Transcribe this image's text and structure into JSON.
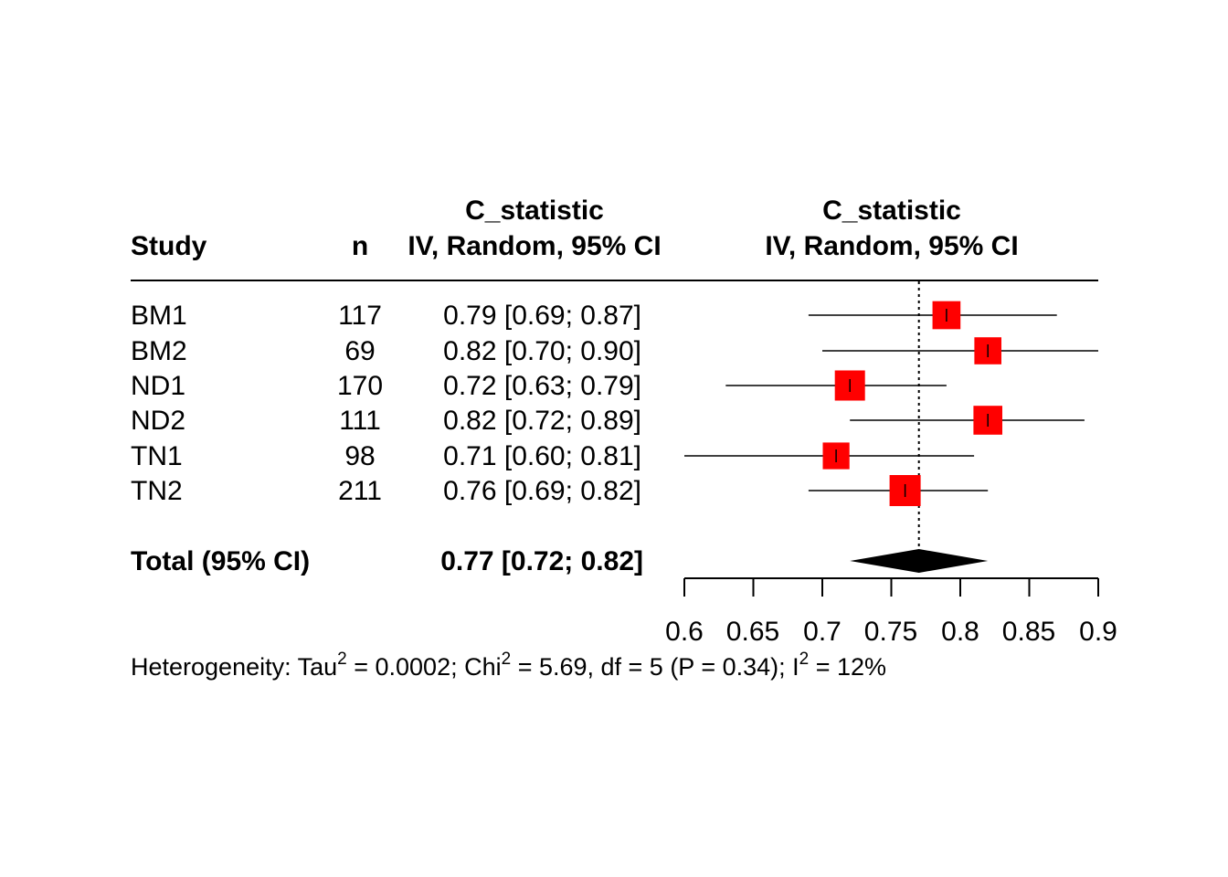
{
  "chart_data": {
    "type": "forest",
    "headers": {
      "study": "Study",
      "n": "n",
      "ci_col_line1": "C_statistic",
      "ci_col_line2": "IV, Random, 95% CI",
      "plot_col_line1": "C_statistic",
      "plot_col_line2": "IV, Random, 95% CI"
    },
    "studies": [
      {
        "study": "BM1",
        "n": "117",
        "ci_text": "0.79 [0.69; 0.87]",
        "est": 0.79,
        "lower": 0.69,
        "upper": 0.87,
        "weight": 0.13
      },
      {
        "study": "BM2",
        "n": "69",
        "ci_text": "0.82 [0.70; 0.90]",
        "est": 0.82,
        "lower": 0.7,
        "upper": 0.9,
        "weight": 0.1
      },
      {
        "study": "ND1",
        "n": "170",
        "ci_text": "0.72 [0.63; 0.79]",
        "est": 0.72,
        "lower": 0.63,
        "upper": 0.79,
        "weight": 0.21
      },
      {
        "study": "ND2",
        "n": "111",
        "ci_text": "0.82 [0.72; 0.89]",
        "est": 0.82,
        "lower": 0.72,
        "upper": 0.89,
        "weight": 0.16
      },
      {
        "study": "TN1",
        "n": "98",
        "ci_text": "0.71 [0.60; 0.81]",
        "est": 0.71,
        "lower": 0.6,
        "upper": 0.81,
        "weight": 0.09
      },
      {
        "study": "TN2",
        "n": "211",
        "ci_text": "0.76 [0.69; 0.82]",
        "est": 0.76,
        "lower": 0.69,
        "upper": 0.82,
        "weight": 0.25
      }
    ],
    "total": {
      "label": "Total (95% CI)",
      "ci_text": "0.77 [0.72; 0.82]",
      "est": 0.77,
      "lower": 0.72,
      "upper": 0.82
    },
    "heterogeneity": {
      "prefix": "Heterogeneity: Tau",
      "tau_sup": "2",
      "tau_val": " = 0.0002; Chi",
      "chi_sup": "2",
      "chi_val": " = 5.69, df = 5 (P = 0.34); I",
      "i_sup": "2",
      "i_val": " = 12%"
    },
    "x_axis": {
      "range": [
        0.6,
        0.9
      ],
      "ticks": [
        0.6,
        0.65,
        0.7,
        0.75,
        0.8,
        0.85,
        0.9
      ],
      "tick_labels": [
        "0.6",
        "0.65",
        "0.7",
        "0.75",
        "0.8",
        "0.85",
        "0.9"
      ]
    },
    "reference_line": 0.77,
    "colors": {
      "box": "#ff0000",
      "diamond": "#000000",
      "line": "#000000"
    }
  }
}
